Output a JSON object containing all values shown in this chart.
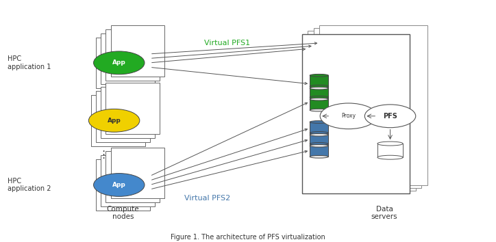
{
  "bg_color": "#ffffff",
  "title": "Figure 1. The architecture of PFS virtualization",
  "hpc1_label": "HPC\napplication 1",
  "hpc2_label": "HPC\napplication 2",
  "compute_nodes_label": "Compute\nnodes",
  "data_servers_label": "Data\nservers",
  "virtual_pfs1_label": "Virtual PFS1",
  "virtual_pfs2_label": "Virtual PFS2",
  "proxy_label": "Proxy",
  "pfs_label": "PFS",
  "app_label": "App",
  "green_color": "#22aa22",
  "yellow_color": "#f0d000",
  "blue_color": "#4488cc",
  "dark_green": "#228B22",
  "steel_blue": "#4477aa",
  "arrow_green": "#22aa22",
  "arrow_blue": "#4477aa",
  "line_color": "#555555",
  "text_color": "#333333"
}
